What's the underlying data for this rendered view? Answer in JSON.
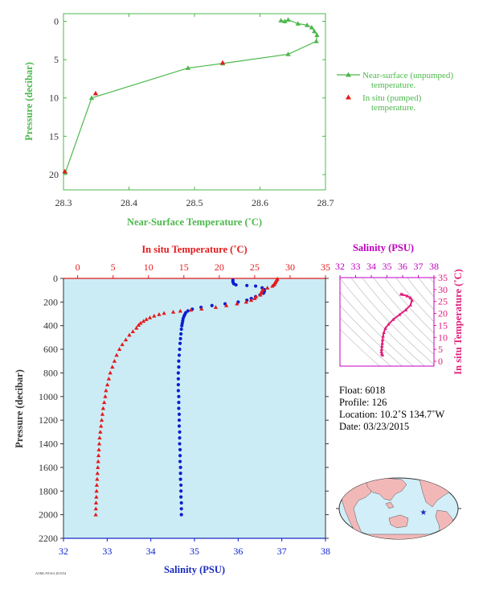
{
  "colors": {
    "near_surface": "#4cb84c",
    "in_situ_temp": "#e31a1c",
    "salinity": "#0a1fd0",
    "inset_accent": "#c000c0",
    "inset_curve": "#e0207a",
    "plot_bg": "#ccecf5",
    "axis_dark": "#333333",
    "land": "#f2b8b8",
    "ocean": "#d2eef8"
  },
  "info": {
    "float": "Float:  6018",
    "profile": "Profile:  126",
    "location": "Location:  10.2˚S  134.7˚W",
    "date": "Date:  03/23/2015"
  },
  "footer_tag": "AOML/NOAA 2015/04",
  "chart_data": [
    {
      "id": "near_surface",
      "type": "line",
      "xlabel": "Near-Surface Temperature (˚C)",
      "ylabel": "Pressure (decibar)",
      "xlim": [
        28.3,
        28.7
      ],
      "ylim": [
        22,
        -1
      ],
      "xticks": [
        28.3,
        28.4,
        28.5,
        28.6,
        28.7
      ],
      "yticks": [
        0,
        5,
        10,
        15,
        20
      ],
      "legend_position": "right",
      "legend": [
        {
          "label_1": "Near-surface (unpumped)",
          "label_2": "temperature."
        },
        {
          "label_1": "In situ (pumped)",
          "label_2": "temperature."
        }
      ],
      "series": [
        {
          "name": "Near-surface (unpumped) temperature.",
          "marker": "triangle",
          "points": [
            [
              28.632,
              -0.1
            ],
            [
              28.638,
              0.0
            ],
            [
              28.643,
              -0.2
            ],
            [
              28.658,
              0.3
            ],
            [
              28.672,
              0.5
            ],
            [
              28.679,
              0.8
            ],
            [
              28.683,
              1.3
            ],
            [
              28.687,
              1.8
            ],
            [
              28.686,
              2.6
            ],
            [
              28.643,
              4.3
            ],
            [
              28.543,
              5.5
            ],
            [
              28.49,
              6.1
            ],
            [
              28.343,
              10.0
            ],
            [
              28.303,
              19.7
            ]
          ]
        },
        {
          "name": "In situ (pumped) temperature.",
          "marker": "triangle",
          "points": [
            [
              28.543,
              5.4
            ],
            [
              28.349,
              9.4
            ],
            [
              28.302,
              19.6
            ]
          ]
        }
      ]
    },
    {
      "id": "profile",
      "type": "scatter",
      "ylabel": "Pressure (decibar)",
      "ylim": [
        2200,
        0
      ],
      "yticks": [
        0,
        200,
        400,
        600,
        800,
        1000,
        1200,
        1400,
        1600,
        1800,
        2000,
        2200
      ],
      "top_axis": {
        "label": "In situ Temperature (˚C)",
        "lim": [
          -2,
          35
        ],
        "ticks": [
          0,
          5,
          10,
          15,
          20,
          25,
          30,
          35
        ]
      },
      "bottom_axis": {
        "label": "Salinity (PSU)",
        "lim": [
          32,
          38
        ],
        "ticks": [
          32,
          33,
          34,
          35,
          36,
          37,
          38
        ]
      },
      "series": [
        {
          "name": "In situ Temperature (˚C)",
          "marker": "triangle",
          "axis": "top",
          "points": [
            [
              28.2,
              5
            ],
            [
              28.1,
              15
            ],
            [
              28.0,
              25
            ],
            [
              27.9,
              35
            ],
            [
              27.8,
              45
            ],
            [
              27.7,
              55
            ],
            [
              27.5,
              65
            ],
            [
              26.8,
              80
            ],
            [
              26.2,
              95
            ],
            [
              26.0,
              110
            ],
            [
              25.9,
              125
            ],
            [
              25.8,
              140
            ],
            [
              25.2,
              155
            ],
            [
              25.0,
              170
            ],
            [
              24.5,
              185
            ],
            [
              23.8,
              200
            ],
            [
              22.5,
              215
            ],
            [
              21.0,
              230
            ],
            [
              19.5,
              245
            ],
            [
              17.5,
              258
            ],
            [
              16.0,
              268
            ],
            [
              14.5,
              276
            ],
            [
              13.5,
              285
            ],
            [
              12.2,
              295
            ],
            [
              11.5,
              305
            ],
            [
              10.8,
              318
            ],
            [
              10.2,
              332
            ],
            [
              9.7,
              347
            ],
            [
              9.3,
              362
            ],
            [
              8.9,
              378
            ],
            [
              8.6,
              395
            ],
            [
              8.3,
              420
            ],
            [
              7.8,
              450
            ],
            [
              7.3,
              480
            ],
            [
              6.8,
              520
            ],
            [
              6.3,
              560
            ],
            [
              5.9,
              600
            ],
            [
              5.5,
              650
            ],
            [
              5.2,
              700
            ],
            [
              4.9,
              750
            ],
            [
              4.6,
              800
            ],
            [
              4.4,
              850
            ],
            [
              4.2,
              900
            ],
            [
              4.0,
              950
            ],
            [
              3.9,
              1000
            ],
            [
              3.75,
              1050
            ],
            [
              3.6,
              1100
            ],
            [
              3.5,
              1150
            ],
            [
              3.4,
              1200
            ],
            [
              3.3,
              1250
            ],
            [
              3.2,
              1300
            ],
            [
              3.1,
              1350
            ],
            [
              3.05,
              1400
            ],
            [
              3.0,
              1450
            ],
            [
              2.95,
              1500
            ],
            [
              2.9,
              1550
            ],
            [
              2.85,
              1600
            ],
            [
              2.8,
              1650
            ],
            [
              2.75,
              1700
            ],
            [
              2.7,
              1750
            ],
            [
              2.67,
              1800
            ],
            [
              2.64,
              1850
            ],
            [
              2.6,
              1900
            ],
            [
              2.57,
              1950
            ],
            [
              2.55,
              2000
            ]
          ]
        },
        {
          "name": "Salinity (PSU)",
          "marker": "circle",
          "axis": "bottom",
          "points": [
            [
              35.88,
              15
            ],
            [
              35.88,
              30
            ],
            [
              35.9,
              45
            ],
            [
              35.95,
              55
            ],
            [
              36.2,
              60
            ],
            [
              36.4,
              65
            ],
            [
              36.55,
              80
            ],
            [
              36.6,
              95
            ],
            [
              36.6,
              110
            ],
            [
              36.58,
              125
            ],
            [
              36.5,
              140
            ],
            [
              36.4,
              155
            ],
            [
              36.3,
              170
            ],
            [
              36.2,
              185
            ],
            [
              36.0,
              200
            ],
            [
              35.7,
              215
            ],
            [
              35.4,
              230
            ],
            [
              35.15,
              245
            ],
            [
              34.95,
              260
            ],
            [
              34.85,
              275
            ],
            [
              34.8,
              290
            ],
            [
              34.78,
              305
            ],
            [
              34.76,
              320
            ],
            [
              34.74,
              340
            ],
            [
              34.73,
              360
            ],
            [
              34.72,
              380
            ],
            [
              34.71,
              400
            ],
            [
              34.7,
              430
            ],
            [
              34.69,
              470
            ],
            [
              34.68,
              510
            ],
            [
              34.67,
              550
            ],
            [
              34.66,
              600
            ],
            [
              34.65,
              650
            ],
            [
              34.64,
              700
            ],
            [
              34.64,
              750
            ],
            [
              34.63,
              800
            ],
            [
              34.63,
              850
            ],
            [
              34.63,
              900
            ],
            [
              34.63,
              950
            ],
            [
              34.64,
              1000
            ],
            [
              34.64,
              1050
            ],
            [
              34.64,
              1100
            ],
            [
              34.65,
              1150
            ],
            [
              34.65,
              1200
            ],
            [
              34.65,
              1250
            ],
            [
              34.66,
              1300
            ],
            [
              34.66,
              1350
            ],
            [
              34.66,
              1400
            ],
            [
              34.67,
              1450
            ],
            [
              34.67,
              1500
            ],
            [
              34.67,
              1550
            ],
            [
              34.68,
              1600
            ],
            [
              34.68,
              1650
            ],
            [
              34.68,
              1700
            ],
            [
              34.69,
              1750
            ],
            [
              34.69,
              1800
            ],
            [
              34.69,
              1850
            ],
            [
              34.7,
              1900
            ],
            [
              34.7,
              1950
            ],
            [
              34.7,
              2000
            ]
          ]
        }
      ]
    },
    {
      "id": "ts_inset",
      "type": "scatter",
      "title": "Salinity (PSU)",
      "ylabel": "In situ Temperature (˚C)",
      "xlim": [
        32,
        38
      ],
      "ylim": [
        -2,
        35
      ],
      "xticks": [
        32,
        33,
        34,
        35,
        36,
        37,
        38
      ],
      "yticks": [
        0,
        5,
        10,
        15,
        20,
        25,
        30,
        35
      ],
      "series": [
        {
          "name": "T-S profile",
          "marker": "triangle",
          "points": [
            [
              34.71,
              2.6
            ],
            [
              34.68,
              3.2
            ],
            [
              34.65,
              4.0
            ],
            [
              34.66,
              5.0
            ],
            [
              34.68,
              6.3
            ],
            [
              34.7,
              7.5
            ],
            [
              34.72,
              9.0
            ],
            [
              34.75,
              10.5
            ],
            [
              34.8,
              12.0
            ],
            [
              34.9,
              13.8
            ],
            [
              35.1,
              15.5
            ],
            [
              35.4,
              17.5
            ],
            [
              35.8,
              19.5
            ],
            [
              36.2,
              21.5
            ],
            [
              36.5,
              23.5
            ],
            [
              36.6,
              25.5
            ],
            [
              36.5,
              26.5
            ],
            [
              36.3,
              27.3
            ],
            [
              36.0,
              27.9
            ],
            [
              35.9,
              28.1
            ]
          ]
        }
      ]
    }
  ],
  "map": {
    "marker_lon": -134.7,
    "marker_lat": -10.2,
    "marker_color": "#1a2bbf"
  }
}
